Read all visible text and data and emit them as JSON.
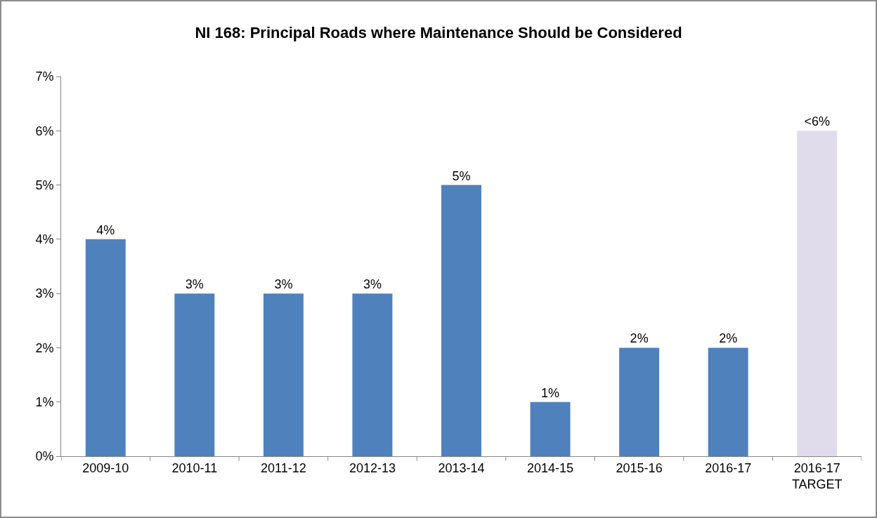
{
  "chart_data": {
    "type": "bar",
    "title": "NI 168: Principal Roads where Maintenance Should be Considered",
    "categories": [
      "2009-10",
      "2010-11",
      "2011-12",
      "2012-13",
      "2013-14",
      "2014-15",
      "2015-16",
      "2016-17",
      "2016-17 TARGET"
    ],
    "values": [
      4,
      3,
      3,
      3,
      5,
      1,
      2,
      2,
      6
    ],
    "colors": [
      "#4f81bd",
      "#4f81bd",
      "#4f81bd",
      "#4f81bd",
      "#4f81bd",
      "#4f81bd",
      "#4f81bd",
      "#4f81bd",
      "#e1dcec"
    ],
    "value_labels": [
      "4%",
      "3%",
      "3%",
      "3%",
      "5%",
      "1%",
      "2%",
      "2%",
      "<6%"
    ],
    "ylim": [
      0,
      7
    ],
    "yticks": [
      {
        "value": 0,
        "label": "0%"
      },
      {
        "value": 1,
        "label": "1%"
      },
      {
        "value": 2,
        "label": "2%"
      },
      {
        "value": 3,
        "label": "3%"
      },
      {
        "value": 4,
        "label": "4%"
      },
      {
        "value": 5,
        "label": "5%"
      },
      {
        "value": 6,
        "label": "6%"
      },
      {
        "value": 7,
        "label": "7%"
      }
    ],
    "grid": false
  }
}
